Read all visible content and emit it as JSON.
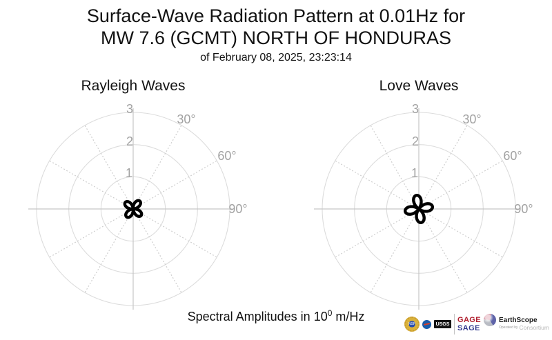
{
  "title": {
    "line1": "Surface-Wave Radiation Pattern at 0.01Hz for",
    "line2": "MW 7.6 (GCMT) NORTH OF HONDURAS",
    "datetime": "of February 08, 2025, 23:23:14"
  },
  "caption": {
    "prefix": "Spectral Amplitudes in 10",
    "exponent": "0",
    "suffix": " m/Hz"
  },
  "chart_data": [
    {
      "type": "polar",
      "title": "Rayleigh Waves",
      "pattern": "four-lobed surface-wave radiation pattern r = A*|cos(2*(azimuth - phi))|",
      "amplitude_units": 0.32,
      "rotation_deg": 40,
      "radial_tick_labels": [
        "1",
        "2",
        "3"
      ],
      "radial_ticks": [
        1,
        2,
        3
      ],
      "radial_max": 3,
      "angle_tick_labels": [
        "30°",
        "60°",
        "90°"
      ],
      "angle_ticks_deg": [
        30,
        60,
        90
      ],
      "units": "10^0 m/Hz",
      "line_color": "#000000",
      "grid": "on"
    },
    {
      "type": "polar",
      "title": "Love Waves",
      "pattern": "four-lobed surface-wave radiation pattern r = A*|cos(2*(azimuth - phi))|",
      "amplitude_units": 0.43,
      "rotation_deg": -10,
      "radial_tick_labels": [
        "1",
        "2",
        "3"
      ],
      "radial_ticks": [
        1,
        2,
        3
      ],
      "radial_max": 3,
      "angle_tick_labels": [
        "30°",
        "60°",
        "90°"
      ],
      "angle_ticks_deg": [
        30,
        60,
        90
      ],
      "units": "10^0 m/Hz",
      "line_color": "#000000",
      "grid": "on"
    }
  ],
  "logos": {
    "nsf": "NSF",
    "usgs": "USGS",
    "gage": "GAGE",
    "sage": "SAGE",
    "earthscope": "EarthScope",
    "consortium": "Consortium",
    "operated_by": "Operated by"
  },
  "colors": {
    "background": "#ffffff",
    "grid_circle": "#dcdcdc",
    "axis": "#c6c6c6",
    "dotted_radial": "#cfcfcf",
    "tick_label": "#a2a2a2",
    "pattern_stroke": "#000000",
    "gage_red": "#b01f2e",
    "sage_blue": "#343a8e"
  }
}
